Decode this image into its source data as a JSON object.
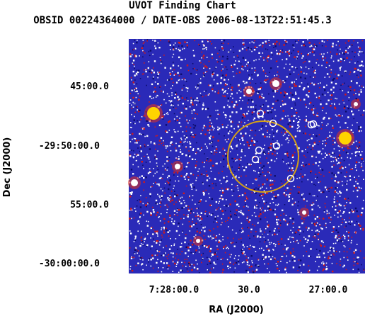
{
  "header": {
    "title": "UVOT Finding Chart",
    "subtitle": "OBSID 00224364000 / DATE-OBS 2006-08-13T22:51:45.3"
  },
  "chart_data": {
    "type": "image",
    "title": "UVOT Finding Chart",
    "subtitle": "OBSID 00224364000 / DATE-OBS 2006-08-13T22:51:45.3",
    "xlabel": "RA (J2000)",
    "ylabel": "Dec (J2000)",
    "x_ticks": [
      "7:28:00.0",
      "30.0",
      "27:00.0"
    ],
    "y_ticks": [
      "45:00.0",
      "-29:50:00.0",
      "55:00.0",
      "-30:00:00.0"
    ],
    "background_color": "#2a2ab8",
    "error_circle_color": "#d4a017",
    "source_marker_color": "#ffffff"
  }
}
